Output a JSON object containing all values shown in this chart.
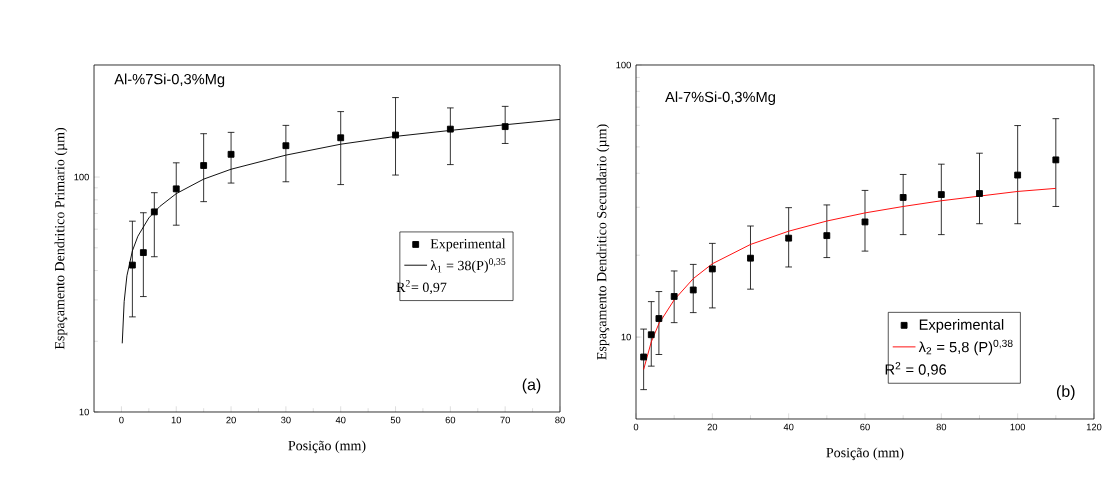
{
  "chart_data": [
    {
      "type": "scatter",
      "title": "Al-%7Si-0,3%Mg",
      "xlabel": "Posição (mm)",
      "ylabel": "Espaçamento Dendritico Primario (µm)",
      "log": "y",
      "xlim": [
        -5,
        80
      ],
      "ylim": [
        10,
        300
      ],
      "xticks": [
        0,
        10,
        20,
        30,
        40,
        50,
        60,
        70,
        80
      ],
      "yticks": [
        10,
        100
      ],
      "legend": "center right",
      "annotations": [
        "R$^{2}$= 0,97",
        "(a)"
      ],
      "series": [
        {
          "name": "Experimental",
          "type": "scatter",
          "marker": "square",
          "color": "#000000",
          "x": [
            2,
            4,
            6,
            10,
            15,
            20,
            30,
            40,
            50,
            60,
            70
          ],
          "values": [
            42.2,
            47.7,
            71.1,
            89.1,
            112,
            125,
            136,
            147,
            151,
            160,
            164
          ],
          "errors": [
            [
              25.4,
              64.9
            ],
            [
              31.0,
              70.5
            ],
            [
              45.8,
              85.8
            ],
            [
              62.4,
              115
            ],
            [
              78.6,
              153
            ],
            [
              94.3,
              155
            ],
            [
              95.5,
              166
            ],
            [
              92.9,
              190
            ],
            [
              102,
              218
            ],
            [
              113,
              197
            ],
            [
              139,
              200
            ]
          ]
        },
        {
          "name": "λ$_{1}$ = 38(P)$^{0,35}$",
          "type": "line",
          "marker": "none",
          "color": "#000000",
          "x": [
            0.15,
            0.5,
            1,
            2,
            3,
            5,
            7,
            10,
            15,
            20,
            30,
            40,
            50,
            60,
            70,
            80
          ],
          "values": [
            19.6,
            29.5,
            38,
            48.5,
            56,
            67,
            75,
            85,
            98,
            108,
            124,
            138,
            149,
            158,
            167,
            176
          ]
        }
      ]
    },
    {
      "type": "scatter",
      "title": "Al-7%Si-0,3%Mg",
      "xlabel": "Posição (mm)",
      "ylabel": "Espaçamento Dendritico Secundario (µm)",
      "log": "y",
      "xlim": [
        0,
        120
      ],
      "ylim": [
        5,
        100
      ],
      "xticks": [
        0,
        20,
        40,
        60,
        80,
        100,
        120
      ],
      "yticks": [
        10,
        100
      ],
      "legend": "bottom right",
      "annotations": [
        "R$^{2}$ = 0,96",
        "(b)"
      ],
      "series": [
        {
          "name": "Experimental",
          "type": "scatter",
          "marker": "square",
          "color": "#000000",
          "x": [
            2,
            4,
            6,
            10,
            15,
            20,
            30,
            40,
            50,
            60,
            70,
            80,
            90,
            100,
            110
          ],
          "values": [
            8.45,
            10.2,
            11.7,
            14.1,
            14.9,
            17.8,
            19.5,
            23.1,
            23.6,
            26.5,
            32.6,
            33.4,
            33.7,
            39.4,
            44.8
          ],
          "errors": [
            [
              6.41,
              10.7
            ],
            [
              7.82,
              13.5
            ],
            [
              8.63,
              14.7
            ],
            [
              11.3,
              17.5
            ],
            [
              12.3,
              18.5
            ],
            [
              12.8,
              22.1
            ],
            [
              15.0,
              25.6
            ],
            [
              18.1,
              29.9
            ],
            [
              19.6,
              30.6
            ],
            [
              20.7,
              34.6
            ],
            [
              23.8,
              39.6
            ],
            [
              23.8,
              43.2
            ],
            [
              26.1,
              47.4
            ],
            [
              26.1,
              59.9
            ],
            [
              30.2,
              63.5
            ]
          ]
        },
        {
          "name": "λ$_{2}$ = 5,8 (P)$^{0,38}$",
          "type": "line",
          "marker": "none",
          "color": "#ff0000",
          "x": [
            2,
            4,
            6,
            10,
            15,
            20,
            30,
            40,
            50,
            60,
            70,
            80,
            100,
            110
          ],
          "values": [
            7.6,
            9.6,
            11.2,
            13.7,
            16.4,
            18.6,
            21.9,
            24.5,
            26.7,
            28.6,
            30.2,
            31.7,
            34.3,
            35.2
          ]
        }
      ]
    }
  ]
}
